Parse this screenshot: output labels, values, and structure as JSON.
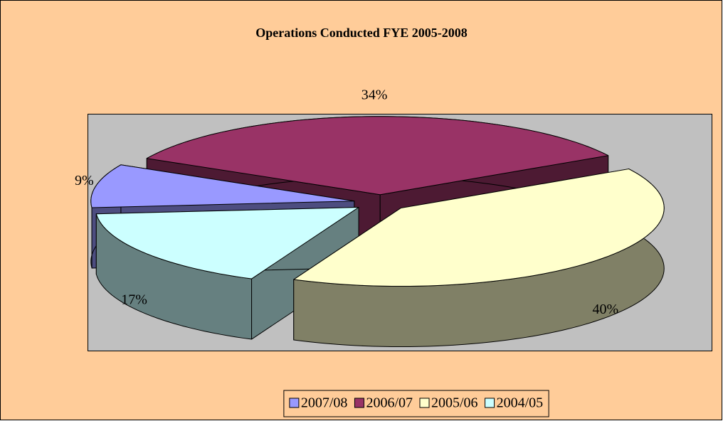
{
  "chart_data": {
    "type": "pie",
    "title": "Operations Conducted FYE 2005-2008",
    "categories": [
      "2007/08",
      "2006/07",
      "2005/06",
      "2004/05"
    ],
    "values": [
      9,
      34,
      40,
      17
    ],
    "value_labels": [
      "9%",
      "34%",
      "40%",
      "17%"
    ],
    "colors": [
      "#9999ff",
      "#993366",
      "#ffffcc",
      "#ccffff"
    ],
    "legend": "bottom"
  }
}
